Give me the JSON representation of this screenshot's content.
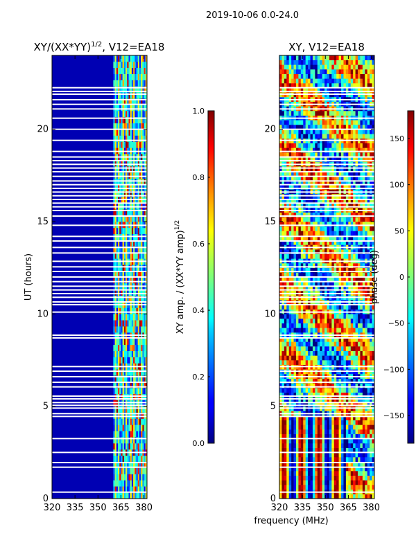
{
  "figure_title": "2019-10-06 0.0-24.0",
  "chart_data": [
    {
      "type": "heatmap",
      "title": "XY/(XX*YY)^1/2, V12=EA18",
      "title_main": "XY/(XX*YY)",
      "title_exp": "1/2",
      "title_tail": ", V12=EA18",
      "xlabel": "",
      "ylabel": "UT (hours)",
      "xlim": [
        320,
        382
      ],
      "ylim": [
        0,
        24
      ],
      "xticks": [
        "320",
        "335",
        "350",
        "365",
        "380"
      ],
      "xtick_values": [
        320,
        335,
        350,
        365,
        380
      ],
      "yticks": [
        "0",
        "5",
        "10",
        "15",
        "20"
      ],
      "ytick_values": [
        0,
        5,
        10,
        15,
        20
      ],
      "colormap": "jet",
      "colorbar": {
        "label_main": "XY amp. / (XX*YY amp)",
        "label_exp": "1/2",
        "range": [
          0.0,
          1.0
        ],
        "ticks": [
          "0.0",
          "0.2",
          "0.4",
          "0.6",
          "0.8",
          "1.0"
        ],
        "tick_values": [
          0.0,
          0.2,
          0.4,
          0.6,
          0.8,
          1.0
        ]
      },
      "baseline_value": 0.05,
      "active_band_mhz": [
        360,
        382
      ]
    },
    {
      "type": "heatmap",
      "title": "XY, V12=EA18",
      "xlabel": "frequency (MHz)",
      "ylabel": "",
      "xlim": [
        320,
        382
      ],
      "ylim": [
        0,
        24
      ],
      "xticks": [
        "320",
        "335",
        "350",
        "365",
        "380"
      ],
      "xtick_values": [
        320,
        335,
        350,
        365,
        380
      ],
      "yticks": [
        "0",
        "5",
        "10",
        "15",
        "20"
      ],
      "ytick_values": [
        0,
        5,
        10,
        15,
        20
      ],
      "colormap": "jet",
      "colorbar": {
        "label": "phase (deg)",
        "range": [
          -180,
          180
        ],
        "ticks": [
          "−150",
          "−100",
          "−50",
          "0",
          "50",
          "100",
          "150"
        ],
        "tick_values": [
          -150,
          -100,
          -50,
          0,
          50,
          100,
          150
        ]
      },
      "vertical_stripes_below_hours": 4.5
    }
  ],
  "flagged_gaps_hours": [
    0.35,
    1.7,
    1.95,
    2.5,
    3.25,
    4.45,
    4.6,
    4.9,
    5.05,
    5.2,
    5.4,
    5.55,
    6.05,
    6.3,
    6.6,
    6.9,
    7.15,
    8.7,
    8.85,
    10.1,
    10.5,
    10.65,
    10.9,
    11.1,
    11.3,
    11.5,
    11.75,
    12.0,
    12.3,
    12.55,
    12.85,
    13.3,
    13.6,
    13.95,
    14.2,
    14.8,
    15.3,
    15.6,
    15.8,
    16.0,
    16.2,
    16.4,
    16.6,
    16.8,
    17.0,
    17.2,
    17.45,
    17.7,
    17.9,
    18.1,
    18.3,
    18.5,
    18.8,
    19.4,
    20.0,
    20.6,
    21.1,
    21.35,
    21.6,
    21.9,
    22.05,
    22.25
  ]
}
